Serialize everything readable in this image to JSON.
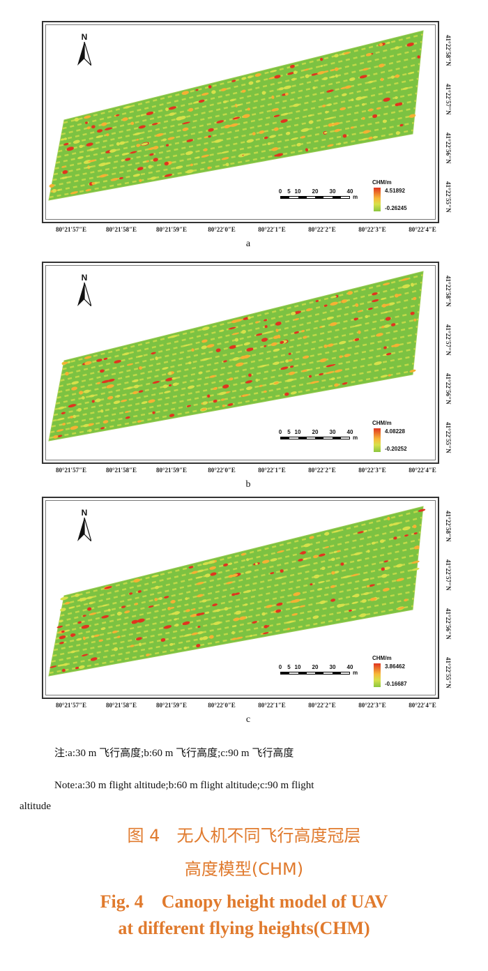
{
  "figure": {
    "panels": [
      {
        "letter": "a",
        "legend": {
          "title": "CHM/m",
          "max": "4.51892",
          "min": "-0.26245"
        },
        "seed": 11
      },
      {
        "letter": "b",
        "legend": {
          "title": "CHM/m",
          "max": "4.08228",
          "min": "-0.20252"
        },
        "seed": 29
      },
      {
        "letter": "c",
        "legend": {
          "title": "CHM/m",
          "max": "3.86462",
          "min": "-0.16687"
        },
        "seed": 47
      }
    ],
    "north_label": "N",
    "scale_bar": {
      "ticks": [
        "0",
        "5",
        "10",
        "20",
        "30",
        "40"
      ],
      "unit": "m"
    },
    "lon_labels": [
      "80°21′57″E",
      "80°21′58″E",
      "80°21′59″E",
      "80°22′0″E",
      "80°22′1″E",
      "80°22′2″E",
      "80°22′3″E",
      "80°22′4″E"
    ],
    "lat_labels": [
      "41°22′58″N",
      "41°22′57″N",
      "41°22′56″N",
      "41°22′55″N"
    ],
    "colors": {
      "ground": "#7cc242",
      "low": "#d7e04a",
      "mid": "#f5b133",
      "high": "#e0341f",
      "frame": "#333333"
    }
  },
  "note_cn": "注:a:30 m 飞行高度;b:60 m 飞行高度;c:90 m 飞行高度",
  "note_en_line1": "Note:a:30 m flight altitude;b:60 m flight altitude;c:90 m flight",
  "note_en_line2": "altitude",
  "caption": {
    "cn_line1": "图 4　无人机不同飞行高度冠层",
    "cn_line2": "高度模型(CHM)",
    "en_line1": "Fig. 4　Canopy height model of UAV",
    "en_line2": "at different flying heights(CHM)"
  }
}
